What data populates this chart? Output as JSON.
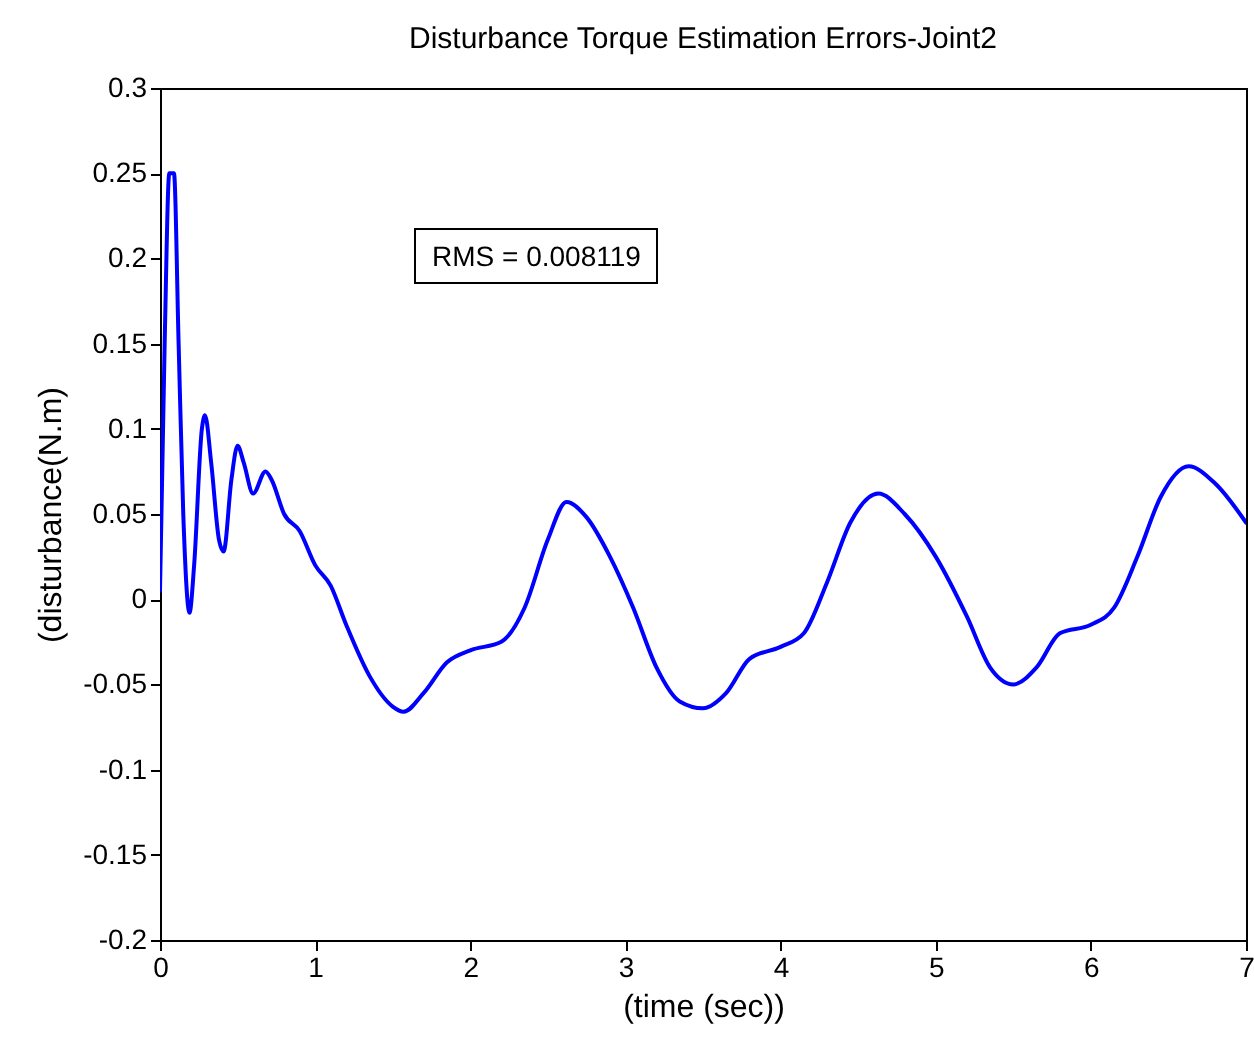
{
  "chart_data": {
    "type": "line",
    "title": "Disturbance Torque Estimation Errors-Joint2",
    "xlabel": "(time (sec))",
    "ylabel": "(disturbance(N.m)",
    "annotations": [
      "RMS = 0.008119"
    ],
    "xlim": [
      0,
      7
    ],
    "xticks": [
      0,
      1,
      2,
      3,
      4,
      5,
      6,
      7
    ],
    "ylim": [
      -0.2,
      0.3
    ],
    "yticks": [
      -0.2,
      -0.15,
      -0.1,
      -0.05,
      0,
      0.05,
      0.1,
      0.15,
      0.2,
      0.25,
      0.3
    ],
    "grid": false,
    "marker": "none",
    "line_style": "solid",
    "x": [
      0,
      0.03,
      0.06,
      0.09,
      0.12,
      0.15,
      0.19,
      0.22,
      0.27,
      0.29,
      0.33,
      0.38,
      0.41,
      0.46,
      0.5,
      0.54,
      0.6,
      0.68,
      0.72,
      0.8,
      0.9,
      1.0,
      1.1,
      1.2,
      1.35,
      1.5,
      1.57,
      1.7,
      1.85,
      2.0,
      2.2,
      2.35,
      2.5,
      2.62,
      2.75,
      2.9,
      3.05,
      3.2,
      3.35,
      3.5,
      3.65,
      3.8,
      4.0,
      4.15,
      4.3,
      4.45,
      4.63,
      4.8,
      5.0,
      5.2,
      5.35,
      5.5,
      5.65,
      5.8,
      6.0,
      6.15,
      6.3,
      6.45,
      6.63,
      6.8,
      7.0
    ],
    "series": [
      {
        "color": "#0000ff",
        "values": [
          0.005,
          0.15,
          0.25,
          0.25,
          0.15,
          0.05,
          -0.008,
          0.02,
          0.1,
          0.108,
          0.08,
          0.035,
          0.028,
          0.07,
          0.09,
          0.08,
          0.062,
          0.075,
          0.07,
          0.05,
          0.04,
          0.02,
          0.008,
          -0.015,
          -0.045,
          -0.063,
          -0.066,
          -0.055,
          -0.037,
          -0.03,
          -0.025,
          -0.005,
          0.035,
          0.057,
          0.048,
          0.025,
          -0.005,
          -0.04,
          -0.06,
          -0.064,
          -0.055,
          -0.035,
          -0.028,
          -0.02,
          0.01,
          0.045,
          0.062,
          0.05,
          0.025,
          -0.01,
          -0.04,
          -0.05,
          -0.04,
          -0.02,
          -0.015,
          -0.005,
          0.025,
          0.06,
          0.078,
          0.068,
          0.045
        ]
      }
    ]
  }
}
